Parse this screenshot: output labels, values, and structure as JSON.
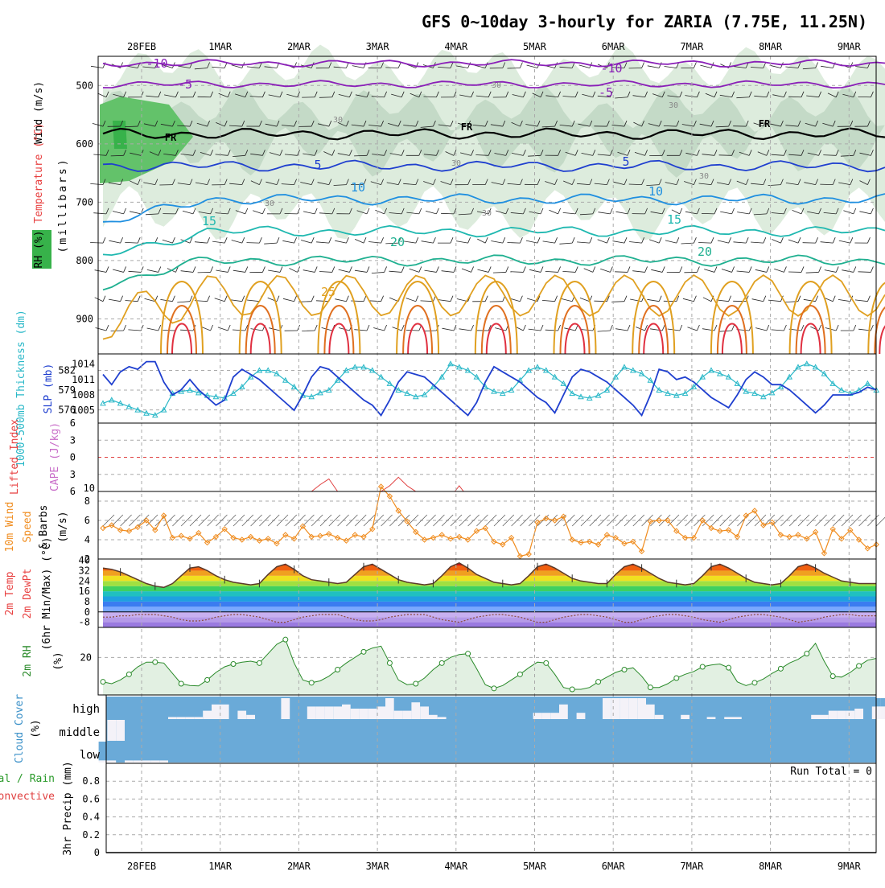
{
  "title": "GFS 0~10day 3-hourly for ZARIA (7.75E, 11.25N)",
  "date_labels": [
    "28FEB",
    "1MAR",
    "2MAR",
    "3MAR",
    "4MAR",
    "5MAR",
    "6MAR",
    "7MAR",
    "8MAR",
    "9MAR"
  ],
  "colors": {
    "frame": "#000000",
    "grid": "#aaaaaa",
    "rh": "#d9ead9",
    "temp_blue": "#1f3fcf",
    "temp_cyan": "#00b4c8",
    "temp_orange": "#e8a020",
    "slp": "#1f3fcf",
    "thickness": "#2ab8c8",
    "wind": "#f08c1e",
    "rh2m": "#2a8a2a",
    "cloud": "#6aaad8"
  },
  "chart_data": [
    {
      "type": "contour",
      "panel": "meteogram-upper",
      "ylabel": [
        "Wind (m/s)",
        "Temperature (°C)",
        "RH (%)"
      ],
      "yaxis_label": "(millibars)",
      "ylim": [
        960,
        450
      ],
      "yticks": [
        500,
        600,
        700,
        800,
        900
      ],
      "rh_legend_label": "RH (%)",
      "freezing_label": "FR",
      "contour_labels": [
        "-10",
        "-5",
        "5",
        "10",
        "15",
        "20",
        "25"
      ],
      "rh_labels": [
        "30"
      ],
      "temperature_contours": [
        {
          "level": -10,
          "mean_mb": 462
        },
        {
          "level": -5,
          "mean_mb": 498
        },
        {
          "level": 0,
          "mean_mb": 583
        },
        {
          "level": 5,
          "mean_mb": 638
        },
        {
          "level": 10,
          "mean_mb": 695
        },
        {
          "level": 15,
          "mean_mb": 750
        },
        {
          "level": 20,
          "mean_mb": 800
        },
        {
          "level": 25,
          "mean_mb": 860
        }
      ]
    },
    {
      "type": "line",
      "panel": "slp-thickness",
      "series": [
        {
          "name": "1000-500mb Thickness (dm)",
          "axis": "left",
          "yticks": [
            576,
            579,
            582
          ],
          "values": [
            577.0,
            577.5,
            577.0,
            576.5,
            576.0,
            575.5,
            575.2,
            576.0,
            578.5,
            578.8,
            579.0,
            578.6,
            578.2,
            578.0,
            577.8,
            578.5,
            579.5,
            581.0,
            582.0,
            582.0,
            581.5,
            580.5,
            579.5,
            578.2,
            578.0,
            578.6,
            579.0,
            580.5,
            582.0,
            582.5,
            582.5,
            582.0,
            581.0,
            580.0,
            579.0,
            578.5,
            578.0,
            578.3,
            579.5,
            581.0,
            583.0,
            582.5,
            582.0,
            581.0,
            579.5,
            578.8,
            578.5,
            579.0,
            580.5,
            582.0,
            582.5,
            582.0,
            581.0,
            580.0,
            578.5,
            578.0,
            577.8,
            578.2,
            579.0,
            581.0,
            582.5,
            582.0,
            581.5,
            580.5,
            579.0,
            578.5,
            578.2,
            578.5,
            579.5,
            581.0,
            582.0,
            581.5,
            581.0,
            580.0,
            578.8,
            578.5,
            578.0,
            578.6,
            579.5,
            581.0,
            582.5,
            583.0,
            582.5,
            581.5,
            580.0,
            579.0,
            578.5,
            579.0,
            580.0,
            579.0
          ]
        },
        {
          "name": "SLP (mb)",
          "axis": "right",
          "yticks": [
            1005,
            1008,
            1011,
            1014
          ],
          "values": [
            1012.0,
            1010.0,
            1012.5,
            1013.5,
            1013.0,
            1014.5,
            1014.5,
            1010.5,
            1008.0,
            1009.0,
            1011.0,
            1009.0,
            1007.5,
            1006.0,
            1007.0,
            1011.5,
            1013.0,
            1012.0,
            1011.0,
            1009.5,
            1008.0,
            1006.5,
            1005.0,
            1008.0,
            1011.5,
            1013.5,
            1013.0,
            1011.5,
            1010.0,
            1008.5,
            1007.0,
            1006.0,
            1004.0,
            1007.0,
            1010.5,
            1012.5,
            1012.0,
            1011.5,
            1010.0,
            1008.5,
            1007.0,
            1005.5,
            1004.0,
            1006.5,
            1010.5,
            1013.5,
            1012.5,
            1011.5,
            1010.5,
            1009.0,
            1007.5,
            1006.5,
            1004.5,
            1008.0,
            1011.5,
            1013.0,
            1012.5,
            1011.5,
            1010.5,
            1009.0,
            1007.5,
            1006.0,
            1004.0,
            1008.0,
            1013.0,
            1012.5,
            1011.0,
            1011.5,
            1010.5,
            1009.0,
            1007.5,
            1006.5,
            1005.5,
            1008.0,
            1011.0,
            1012.5,
            1011.5,
            1010.0,
            1010.0,
            1009.0,
            1007.5,
            1006.0,
            1004.5,
            1006.0,
            1008.0,
            1008.0,
            1008.0,
            1008.5,
            1009.5,
            1009.0
          ]
        }
      ]
    },
    {
      "type": "line",
      "panel": "lifted-index-cape",
      "ylabel": [
        "Lifted Index",
        "CAPE (J/kg)"
      ],
      "yticks_left": [
        -6,
        -3,
        0,
        3,
        6
      ],
      "yticks_right": [
        10
      ],
      "ylim": [
        -6,
        6
      ],
      "series": [
        {
          "name": "Lifted Index",
          "axis": "left",
          "segments": [
            {
              "x": [
                24.0,
                25.0,
                26.0,
                27.0
              ],
              "values": [
                6,
                4.8,
                3.8,
                6
              ]
            },
            {
              "x": [
                32.0,
                33.0,
                34.0,
                35.0,
                36.0
              ],
              "values": [
                6,
                5.0,
                3.5,
                5.0,
                6
              ]
            },
            {
              "x": [
                40.5,
                41.0,
                41.5
              ],
              "values": [
                6,
                5.0,
                6
              ]
            }
          ]
        },
        {
          "name": "CAPE (J/kg)",
          "axis": "right",
          "values": []
        }
      ]
    },
    {
      "type": "line",
      "panel": "10m-wind",
      "ylabel": [
        "10m Wind",
        "Speed",
        "& Barbs",
        "(m/s)"
      ],
      "yticks": [
        2,
        4,
        6,
        8
      ],
      "ylim": [
        2,
        9
      ],
      "series": [
        {
          "name": "10m Wind Speed",
          "values": [
            5.2,
            5.5,
            5.0,
            4.9,
            5.3,
            6.0,
            5.0,
            6.5,
            4.2,
            4.4,
            4.1,
            4.7,
            3.7,
            4.3,
            5.1,
            4.2,
            4.0,
            4.3,
            3.9,
            4.1,
            3.6,
            4.5,
            4.1,
            5.4,
            4.3,
            4.4,
            4.6,
            4.2,
            3.9,
            4.5,
            4.3,
            5.1,
            9.5,
            8.5,
            7.0,
            5.9,
            4.8,
            4.0,
            4.2,
            4.5,
            4.1,
            4.3,
            4.0,
            4.9,
            5.2,
            3.8,
            3.5,
            4.2,
            2.3,
            2.5,
            5.8,
            6.2,
            6.0,
            6.4,
            4.0,
            3.7,
            3.8,
            3.5,
            4.5,
            4.2,
            3.6,
            3.8,
            2.8,
            5.9,
            6.0,
            6.0,
            4.9,
            4.2,
            4.2,
            6.0,
            5.2,
            4.9,
            5.0,
            4.3,
            6.5,
            7.0,
            5.5,
            5.8,
            4.5,
            4.3,
            4.5,
            4.1,
            4.8,
            2.6,
            5.1,
            4.1,
            5.0,
            4.0,
            3.1,
            3.5
          ]
        }
      ]
    },
    {
      "type": "line",
      "panel": "2m-temperature",
      "ylabel": [
        "2m Temp",
        "2m DewPt",
        "(6hr Min/Max) (°C)"
      ],
      "yticks": [
        -8,
        0,
        8,
        16,
        24,
        32,
        40
      ],
      "ylim": [
        -12,
        41
      ],
      "series": [
        {
          "name": "2m Temp",
          "values": [
            34,
            33,
            31,
            28,
            25,
            22,
            20,
            19,
            22,
            28,
            34,
            35,
            32,
            28,
            25,
            23,
            22,
            21,
            22,
            29,
            35,
            37,
            33,
            28,
            25,
            24,
            23,
            22,
            23,
            29,
            35,
            37,
            33,
            29,
            25,
            23,
            22,
            21,
            22,
            28,
            35,
            38,
            34,
            29,
            26,
            23,
            22,
            21,
            22,
            28,
            35,
            37,
            34,
            30,
            26,
            24,
            23,
            22,
            22,
            29,
            35,
            37,
            34,
            30,
            26,
            23,
            22,
            21,
            22,
            28,
            35,
            37,
            34,
            30,
            26,
            23,
            22,
            21,
            22,
            28,
            35,
            37,
            34,
            30,
            27,
            24,
            23,
            22,
            22,
            22
          ]
        },
        {
          "name": "2m DewPt",
          "values": [
            -4,
            -4,
            -3,
            -3,
            -2,
            -2,
            -2,
            -3,
            -4,
            -6,
            -7,
            -7,
            -6,
            -4,
            -3,
            -2,
            -2,
            -3,
            -4,
            -6,
            -8,
            -8,
            -6,
            -4,
            -3,
            -2,
            -2,
            -2,
            -4,
            -6,
            -7,
            -7,
            -6,
            -4,
            -3,
            -2,
            -2,
            -2,
            -4,
            -6,
            -7,
            -8,
            -6,
            -4,
            -3,
            -2,
            -2,
            -3,
            -4,
            -6,
            -8,
            -8,
            -6,
            -4,
            -3,
            -2,
            -2,
            -3,
            -4,
            -6,
            -8,
            -8,
            -6,
            -4,
            -3,
            -2,
            -2,
            -3,
            -4,
            -6,
            -7,
            -8,
            -6,
            -4,
            -3,
            -2,
            -2,
            -3,
            -4,
            -6,
            -8,
            -7,
            -6,
            -4,
            -3,
            -2,
            -2,
            -3,
            -3,
            -3
          ]
        }
      ]
    },
    {
      "type": "area",
      "panel": "2m-rh",
      "ylabel": [
        "2m RH",
        "(%)"
      ],
      "yticks": [
        20
      ],
      "ylim": [
        0,
        36
      ],
      "series": [
        {
          "name": "2m RH",
          "values": [
            7.0,
            6.0,
            8.0,
            11.0,
            15.0,
            17.5,
            17.5,
            17.0,
            11.5,
            6.0,
            5.0,
            4.8,
            8.0,
            12.0,
            15.0,
            16.5,
            17.5,
            18.0,
            17.0,
            22.0,
            27.0,
            29.5,
            17.0,
            8.0,
            6.5,
            7.5,
            10.0,
            13.5,
            17.0,
            20.0,
            23.0,
            25.0,
            26.0,
            17.0,
            8.0,
            5.5,
            6.0,
            9.0,
            13.5,
            17.0,
            20.0,
            21.5,
            22.0,
            14.0,
            5.5,
            3.5,
            5.0,
            8.0,
            11.0,
            14.5,
            17.5,
            17.0,
            11.0,
            4.0,
            3.0,
            3.0,
            4.0,
            7.0,
            9.5,
            12.0,
            13.5,
            14.5,
            10.0,
            4.0,
            4.0,
            6.0,
            9.0,
            11.0,
            12.5,
            15.0,
            16.0,
            16.5,
            14.5,
            7.0,
            5.0,
            6.5,
            8.5,
            11.5,
            14.0,
            17.0,
            19.0,
            22.0,
            27.5,
            18.0,
            10.0,
            9.5,
            12.0,
            15.5,
            18.5,
            19.5
          ]
        }
      ]
    },
    {
      "type": "bar",
      "panel": "cloud-cover",
      "ylabel": [
        "Cloud Cover",
        "(%)"
      ],
      "levels": [
        "high",
        "middle",
        "low"
      ],
      "series": [
        {
          "name": "high",
          "values": [
            0,
            0,
            0,
            0,
            0,
            0,
            0,
            0,
            10,
            10,
            10,
            10,
            40,
            70,
            70,
            0,
            40,
            20,
            0,
            0,
            0,
            100,
            0,
            0,
            60,
            60,
            60,
            60,
            70,
            50,
            50,
            50,
            60,
            100,
            40,
            40,
            80,
            60,
            20,
            10,
            0,
            0,
            0,
            0,
            0,
            0,
            0,
            0,
            0,
            0,
            30,
            30,
            30,
            70,
            0,
            30,
            0,
            0,
            100,
            100,
            100,
            100,
            100,
            70,
            20,
            0,
            0,
            20,
            0,
            0,
            10,
            0,
            10,
            10,
            0,
            0,
            0,
            0,
            0,
            0,
            0,
            0,
            20,
            20,
            40,
            40,
            40,
            50,
            0,
            60,
            60,
            0
          ]
        },
        {
          "name": "middle",
          "values": [
            0,
            100,
            100,
            0,
            0,
            0,
            0,
            0,
            0,
            0,
            0,
            0,
            0,
            0,
            0,
            0,
            0,
            0,
            0,
            0,
            0,
            0,
            0,
            0,
            0,
            0,
            0,
            0,
            0,
            0,
            0,
            0,
            0,
            0,
            0,
            0,
            0,
            0,
            0,
            0,
            0,
            0,
            0,
            0,
            0,
            0,
            0,
            0,
            0,
            0,
            0,
            0,
            0,
            0,
            0,
            0,
            0,
            0,
            0,
            0,
            0,
            0,
            0,
            0,
            0,
            0,
            0,
            0,
            0,
            0,
            0,
            0,
            0,
            0,
            0,
            0,
            0,
            0,
            0,
            0,
            0,
            0,
            0,
            0,
            0,
            0,
            0,
            0,
            0,
            0
          ]
        },
        {
          "name": "low",
          "values": [
            10,
            10,
            0,
            10,
            10,
            10,
            10,
            10,
            0,
            0,
            0,
            0,
            0,
            0,
            0,
            0,
            0,
            0,
            0,
            0,
            0,
            0,
            0,
            0,
            0,
            0,
            0,
            0,
            0,
            0,
            0,
            0,
            0,
            0,
            0,
            0,
            0,
            0,
            0,
            0,
            0,
            0,
            0,
            0,
            0,
            0,
            0,
            0,
            0,
            0,
            0,
            0,
            0,
            0,
            0,
            0,
            0,
            0,
            0,
            0,
            0,
            0,
            0,
            0,
            0,
            0,
            0,
            0,
            0,
            0,
            0,
            0,
            0,
            0,
            0,
            0,
            0,
            0,
            0,
            0,
            0,
            0,
            0,
            0,
            0,
            0,
            0,
            0,
            0,
            0
          ]
        }
      ]
    },
    {
      "type": "bar",
      "panel": "precip",
      "ylabel": [
        "3hr Precip (mm)"
      ],
      "legend": [
        "Total / Rain",
        "Convective"
      ],
      "annotation": "Run Total = 0",
      "yticks": [
        "0",
        "0.2",
        "0.4",
        "0.6",
        "0.8"
      ],
      "ylim": [
        0,
        1
      ],
      "series": [
        {
          "name": "3hr Precip",
          "values": []
        }
      ]
    }
  ]
}
